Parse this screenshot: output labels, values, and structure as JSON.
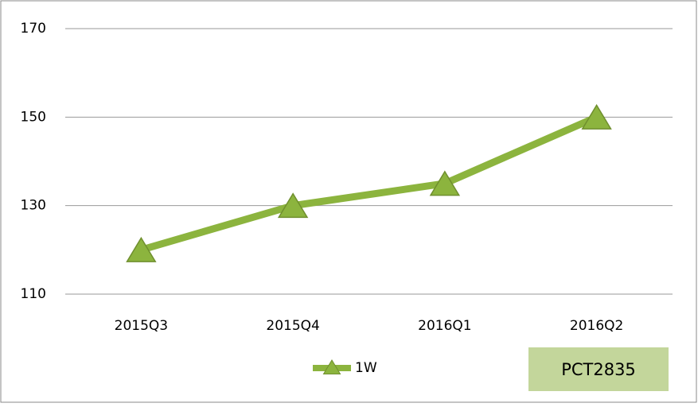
{
  "chart_data": {
    "type": "line",
    "categories": [
      "2015Q3",
      "2015Q4",
      "2016Q1",
      "2016Q2"
    ],
    "series": [
      {
        "name": "1W",
        "color": "#8cb43e",
        "values": [
          120,
          130,
          135,
          150
        ]
      }
    ],
    "ylim": [
      110,
      170
    ],
    "yticks": [
      110,
      130,
      150,
      170
    ],
    "grid": true,
    "legend": "bottom",
    "annotation": "PCT2835"
  }
}
